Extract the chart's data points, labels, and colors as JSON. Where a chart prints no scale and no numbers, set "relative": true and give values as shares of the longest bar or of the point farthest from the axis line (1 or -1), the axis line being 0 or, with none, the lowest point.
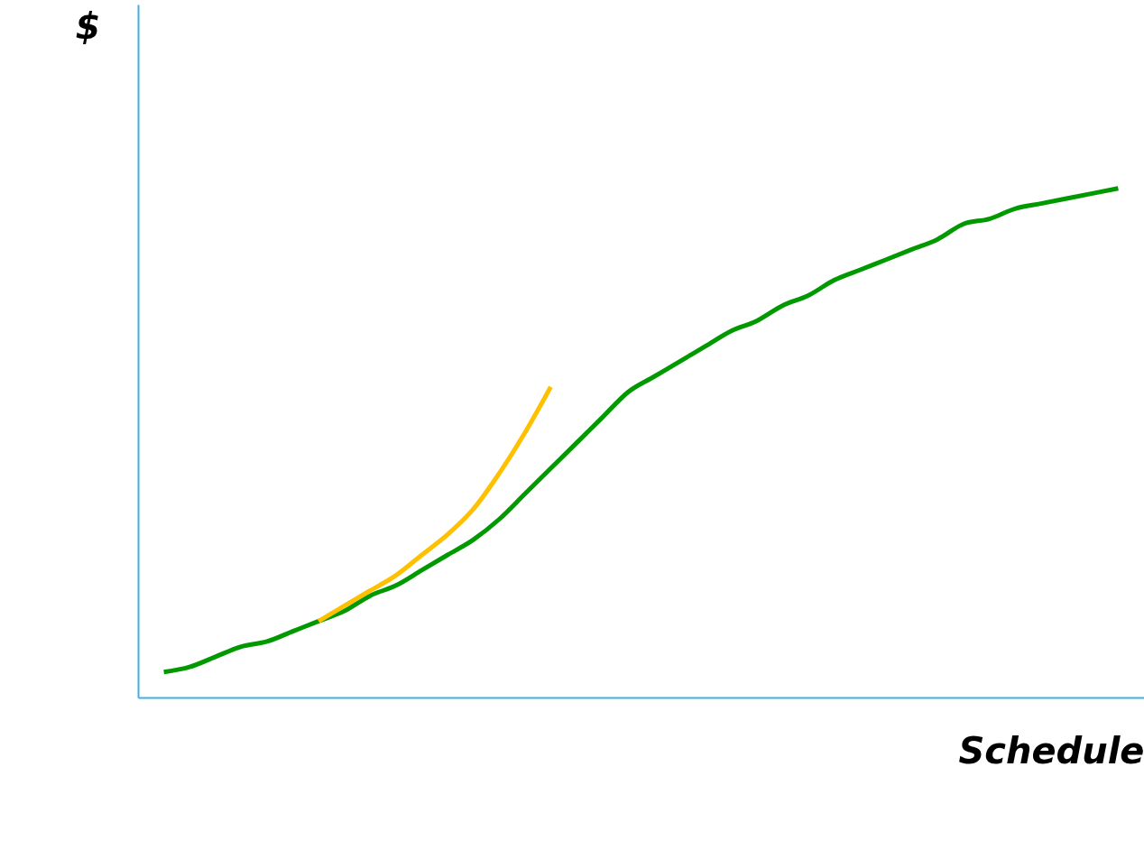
{
  "chart_data": {
    "type": "line",
    "relative": true,
    "xlabel": "Schedule",
    "ylabel": "$",
    "categories": [
      null,
      null,
      null,
      null,
      null,
      null,
      null,
      null,
      null,
      null,
      null,
      null,
      null,
      null,
      null,
      null,
      null,
      null,
      null,
      null,
      null,
      null,
      null,
      null,
      null,
      null,
      null,
      null,
      null,
      null,
      null,
      null,
      null,
      null,
      null,
      null,
      null,
      null
    ],
    "series": [
      {
        "color": "#009900",
        "values": [
          0.05,
          0.06,
          0.08,
          0.1,
          0.11,
          0.13,
          0.15,
          0.17,
          0.2,
          0.22,
          0.25,
          0.28,
          0.31,
          0.35,
          0.4,
          0.45,
          0.5,
          0.55,
          0.6,
          0.63,
          0.66,
          0.69,
          0.72,
          0.74,
          0.77,
          0.79,
          0.82,
          0.84,
          0.86,
          0.88,
          0.9,
          0.93,
          0.94,
          0.96,
          0.97,
          0.98,
          0.99,
          1
        ]
      },
      {
        "color": "#ffc000",
        "values": [
          null,
          null,
          null,
          null,
          null,
          null,
          0.15,
          0.18,
          0.21,
          0.24,
          0.28,
          0.32,
          0.37,
          0.44,
          0.52,
          0.61,
          null,
          null,
          null,
          null,
          null,
          null,
          null,
          null,
          null,
          null,
          null,
          null,
          null,
          null,
          null,
          null,
          null,
          null,
          null,
          null,
          null,
          null
        ]
      }
    ],
    "grid": false,
    "legend": false
  }
}
